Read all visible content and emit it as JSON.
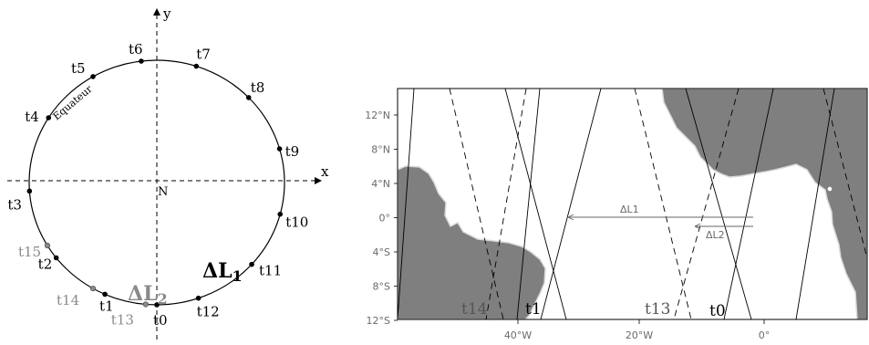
{
  "left_diagram": {
    "axis_x_label": "x",
    "axis_y_label": "y",
    "center_label": "N",
    "equator_label": "Equateur",
    "points": [
      {
        "id": "t0",
        "label": "t0",
        "angle_deg": 270,
        "color": "black"
      },
      {
        "id": "t1",
        "label": "t1",
        "angle_deg": 246,
        "color": "black"
      },
      {
        "id": "t2",
        "label": "t2",
        "angle_deg": 218,
        "color": "black"
      },
      {
        "id": "t3",
        "label": "t3",
        "angle_deg": 184,
        "color": "black"
      },
      {
        "id": "t4",
        "label": "t4",
        "angle_deg": 148,
        "color": "black"
      },
      {
        "id": "t5",
        "label": "t5",
        "angle_deg": 120,
        "color": "black"
      },
      {
        "id": "t6",
        "label": "t6",
        "angle_deg": 97,
        "color": "black"
      },
      {
        "id": "t7",
        "label": "t7",
        "angle_deg": 72,
        "color": "black"
      },
      {
        "id": "t8",
        "label": "t8",
        "angle_deg": 44,
        "color": "black"
      },
      {
        "id": "t9",
        "label": "t9",
        "angle_deg": 16,
        "color": "black"
      },
      {
        "id": "t10",
        "label": "t10",
        "angle_deg": -15,
        "color": "black"
      },
      {
        "id": "t11",
        "label": "t11",
        "angle_deg": -42,
        "color": "black"
      },
      {
        "id": "t12",
        "label": "t12",
        "angle_deg": -71,
        "color": "black"
      },
      {
        "id": "t13",
        "label": "t13",
        "angle_deg": 265,
        "color": "grey"
      },
      {
        "id": "t14",
        "label": "t14",
        "angle_deg": 240,
        "color": "grey"
      },
      {
        "id": "t15",
        "label": "t15",
        "angle_deg": 211,
        "color": "grey"
      }
    ],
    "delta_l1": {
      "base": "ΔL",
      "sub": "1"
    },
    "delta_l2": {
      "base": "ΔL",
      "sub": "2"
    }
  },
  "right_map": {
    "lat_ticks": [
      "12°N",
      "8°N",
      "4°N",
      "0°",
      "4°S",
      "8°S",
      "12°S"
    ],
    "lon_ticks": [
      "40°W",
      "20°W",
      "0°"
    ],
    "track_labels": [
      {
        "id": "t14",
        "label": "t14",
        "color": "grey"
      },
      {
        "id": "t1",
        "label": "t1",
        "color": "black"
      },
      {
        "id": "t13",
        "label": "t13",
        "color": "grey"
      },
      {
        "id": "t0",
        "label": "t0",
        "color": "black"
      }
    ],
    "arrow_l1_label": "ΔL1",
    "arrow_l2_label": "ΔL2"
  },
  "colors": {
    "land": "#7f7f7f",
    "coast": "#d9d9d9",
    "grey_text": "#8a8a8a"
  }
}
